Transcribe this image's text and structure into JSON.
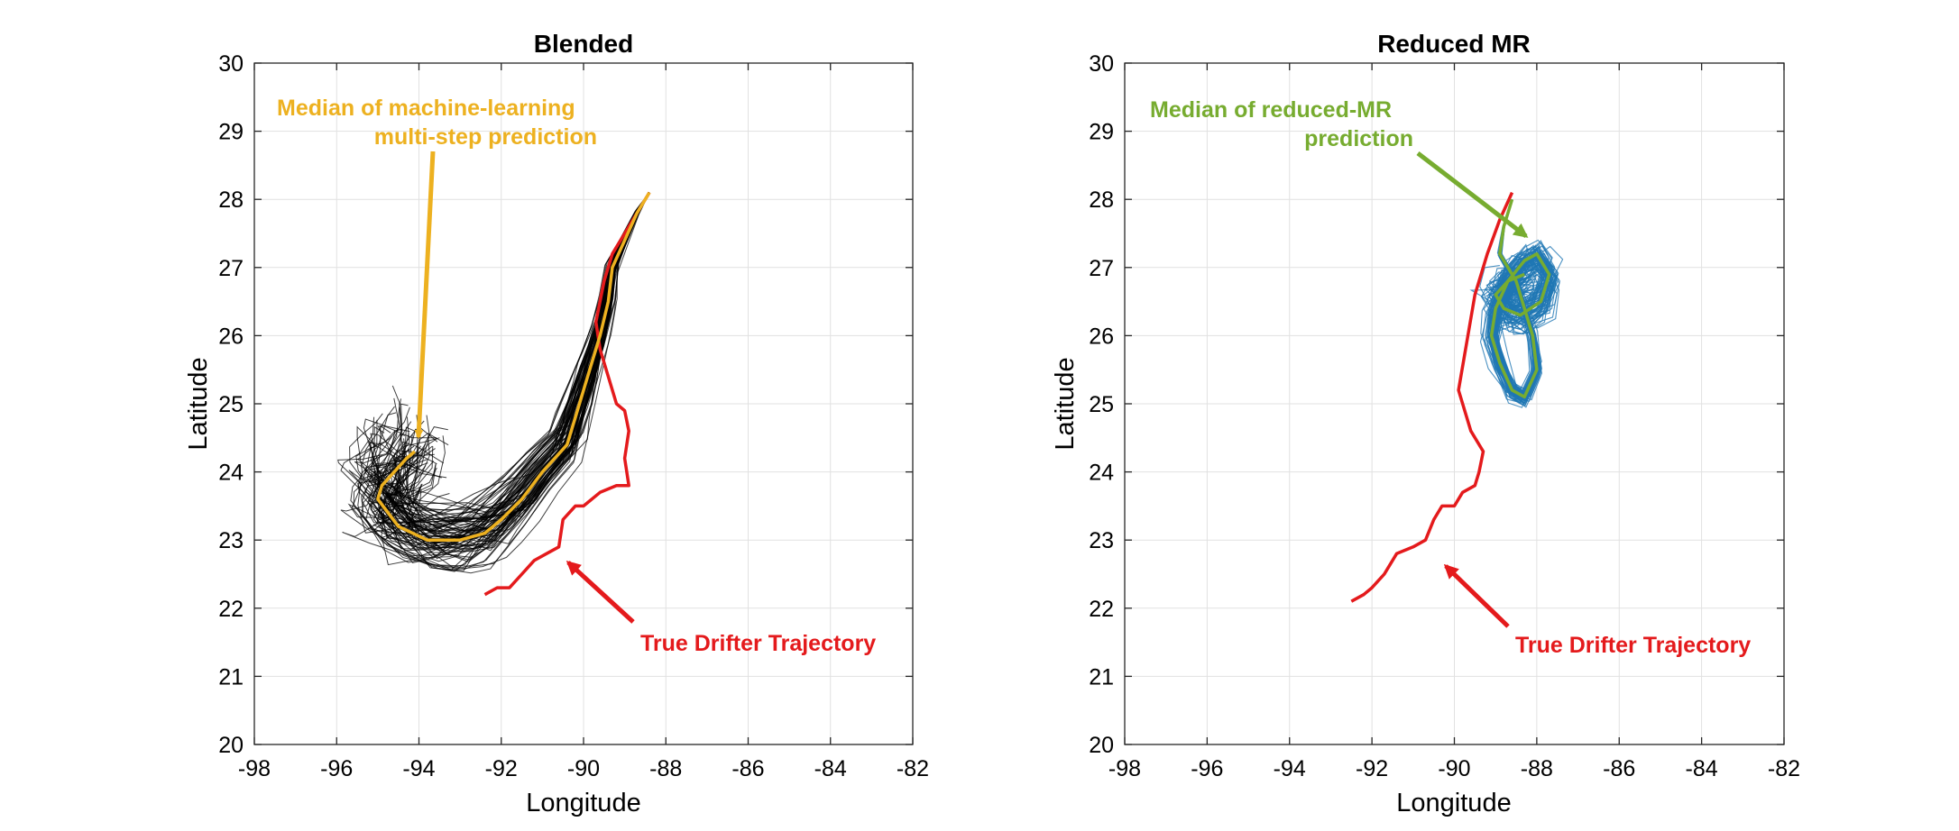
{
  "chart_data": [
    {
      "type": "line",
      "title": "Blended",
      "xlabel": "Longitude",
      "ylabel": "Latitude",
      "xlim": [
        -98,
        -82
      ],
      "ylim": [
        20,
        30
      ],
      "xticks": [
        -98,
        -96,
        -94,
        -92,
        -90,
        -88,
        -86,
        -84,
        -82
      ],
      "yticks": [
        20,
        21,
        22,
        23,
        24,
        25,
        26,
        27,
        28,
        29,
        30
      ],
      "grid": true,
      "ensemble_color": "#000000",
      "series": [
        {
          "color": "#e41a1c",
          "x": [
            -92.4,
            -92.1,
            -91.8,
            -91.5,
            -91.2,
            -90.9,
            -90.6,
            -90.5,
            -90.2,
            -90.0,
            -89.6,
            -89.2,
            -88.9,
            -89.0,
            -88.9,
            -89.0,
            -89.2,
            -89.4,
            -89.6,
            -89.7,
            -89.5,
            -89.3,
            -89.0,
            -88.7,
            -88.4
          ],
          "y": [
            22.2,
            22.3,
            22.3,
            22.5,
            22.7,
            22.8,
            22.9,
            23.3,
            23.5,
            23.5,
            23.7,
            23.8,
            23.8,
            24.2,
            24.6,
            24.9,
            25.0,
            25.4,
            25.8,
            26.2,
            26.8,
            27.2,
            27.5,
            27.8,
            28.1
          ]
        },
        {
          "color": "#edb120",
          "x": [
            -88.4,
            -88.7,
            -89.0,
            -89.3,
            -89.4,
            -89.6,
            -89.8,
            -90.0,
            -90.2,
            -90.4,
            -91.0,
            -91.5,
            -92.0,
            -92.4,
            -93.0,
            -93.8,
            -94.5,
            -95.0,
            -94.9,
            -94.6,
            -94.3,
            -94.1
          ],
          "y": [
            28.1,
            27.8,
            27.4,
            27.0,
            26.5,
            26.0,
            25.6,
            25.2,
            24.8,
            24.4,
            24.0,
            23.6,
            23.3,
            23.1,
            23.0,
            23.0,
            23.2,
            23.6,
            23.8,
            24.0,
            24.2,
            24.3
          ]
        }
      ],
      "annotations": [
        {
          "lines": [
            "Median of machine-learning",
            "multi-step prediction"
          ],
          "color": "#edb120"
        },
        {
          "lines": [
            "True Drifter Trajectory"
          ],
          "color": "#e41a1c"
        }
      ]
    },
    {
      "type": "line",
      "title": "Reduced MR",
      "xlabel": "Longitude",
      "ylabel": "Latitude",
      "xlim": [
        -98,
        -82
      ],
      "ylim": [
        20,
        30
      ],
      "xticks": [
        -98,
        -96,
        -94,
        -92,
        -90,
        -88,
        -86,
        -84,
        -82
      ],
      "yticks": [
        20,
        21,
        22,
        23,
        24,
        25,
        26,
        27,
        28,
        29,
        30
      ],
      "grid": true,
      "ensemble_color": "#1f77b4",
      "series": [
        {
          "color": "#e41a1c",
          "x": [
            -92.5,
            -92.2,
            -92.0,
            -91.7,
            -91.4,
            -91.0,
            -90.7,
            -90.5,
            -90.3,
            -90.0,
            -89.8,
            -89.5,
            -89.4,
            -89.3,
            -89.6,
            -89.9,
            -89.7,
            -89.5,
            -89.2,
            -88.9,
            -88.6
          ],
          "y": [
            22.1,
            22.2,
            22.3,
            22.5,
            22.8,
            22.9,
            23.0,
            23.3,
            23.5,
            23.5,
            23.7,
            23.8,
            24.0,
            24.3,
            24.6,
            25.2,
            25.9,
            26.6,
            27.2,
            27.7,
            28.1
          ]
        },
        {
          "color": "#77ac30",
          "x": [
            -88.6,
            -88.8,
            -88.9,
            -88.5,
            -88.3,
            -88.1,
            -88.0,
            -88.3,
            -88.6,
            -88.9,
            -89.1,
            -89.0,
            -88.7,
            -88.3,
            -88.0,
            -87.7,
            -87.9,
            -88.4,
            -88.8,
            -89.0,
            -88.7,
            -88.3
          ],
          "y": [
            28.0,
            27.6,
            27.2,
            26.8,
            26.4,
            26.0,
            25.5,
            25.1,
            25.2,
            25.6,
            26.0,
            26.4,
            26.8,
            27.1,
            27.2,
            26.9,
            26.5,
            26.3,
            26.4,
            26.6,
            26.8,
            26.9
          ]
        }
      ],
      "annotations": [
        {
          "lines": [
            "Median of reduced-MR",
            "prediction"
          ],
          "color": "#77ac30"
        },
        {
          "lines": [
            "True Drifter Trajectory"
          ],
          "color": "#e41a1c"
        }
      ]
    }
  ]
}
